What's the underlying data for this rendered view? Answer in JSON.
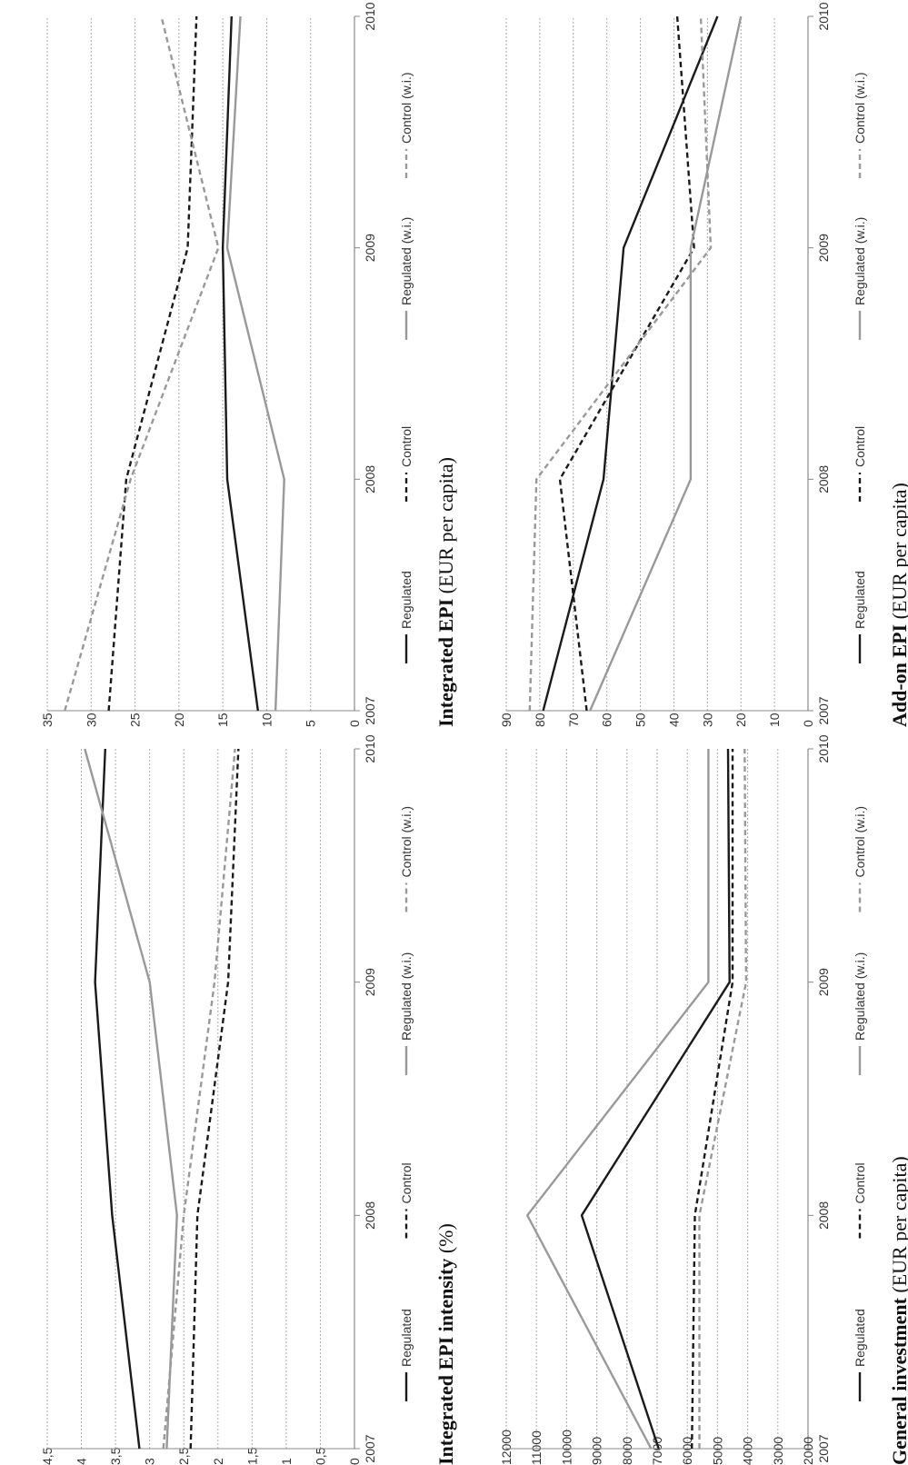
{
  "colors": {
    "regulated": "#1a1a1a",
    "control": "#1a1a1a",
    "regulated_wi": "#999999",
    "control_wi": "#999999",
    "grid": "#aaaaaa",
    "axis": "#888888"
  },
  "chart_data": [
    {
      "type": "line",
      "title_bold": "Integrated EPI",
      "title_rest": " (EUR per capita)",
      "x": [
        "2007",
        "2008",
        "2009",
        "2010"
      ],
      "ylim": [
        0,
        35
      ],
      "yticks": [
        "0",
        "5",
        "10",
        "15",
        "20",
        "25",
        "30",
        "35"
      ],
      "grid": true,
      "legend_position": "bottom",
      "series": [
        {
          "name": "Regulated",
          "style": "solid",
          "color": "#1a1a1a",
          "values": [
            11,
            14.5,
            15,
            14
          ]
        },
        {
          "name": "Control",
          "style": "dashed",
          "color": "#1a1a1a",
          "values": [
            28,
            26,
            19,
            18
          ]
        },
        {
          "name": "Regulated (w.i.)",
          "style": "solid",
          "color": "#999999",
          "values": [
            9,
            8,
            14.5,
            13
          ]
        },
        {
          "name": "Control (w.i.)",
          "style": "dashed",
          "color": "#999999",
          "values": [
            33,
            25.5,
            15.5,
            22
          ]
        }
      ]
    },
    {
      "type": "line",
      "title_bold": "Add-on EPI",
      "title_rest": " (EUR per capita)",
      "x": [
        "2007",
        "2008",
        "2009",
        "2010"
      ],
      "ylim": [
        0,
        90
      ],
      "yticks": [
        "0",
        "10",
        "20",
        "30",
        "40",
        "50",
        "60",
        "70",
        "80",
        "90"
      ],
      "grid": true,
      "legend_position": "bottom",
      "series": [
        {
          "name": "Regulated",
          "style": "solid",
          "color": "#1a1a1a",
          "values": [
            79,
            61,
            55,
            27
          ]
        },
        {
          "name": "Control",
          "style": "dashed",
          "color": "#1a1a1a",
          "values": [
            66,
            74,
            34,
            39
          ]
        },
        {
          "name": "Regulated (w.i.)",
          "style": "solid",
          "color": "#999999",
          "values": [
            65,
            35,
            35,
            20
          ]
        },
        {
          "name": "Control (w.i.)",
          "style": "dashed",
          "color": "#999999",
          "values": [
            83,
            81,
            29,
            32
          ]
        }
      ]
    },
    {
      "type": "line",
      "title_bold": "Integrated EPI intensity",
      "title_rest": " (%)",
      "x": [
        "2007",
        "2008",
        "2009",
        "2010"
      ],
      "ylim": [
        0,
        4.5
      ],
      "yticks": [
        "0",
        "0,5",
        "1",
        "1,5",
        "2",
        "2,5",
        "3",
        "3,5",
        "4",
        "4,5"
      ],
      "grid": true,
      "legend_position": "bottom",
      "series": [
        {
          "name": "Regulated",
          "style": "solid",
          "color": "#1a1a1a",
          "values": [
            3.15,
            3.55,
            3.8,
            3.65
          ]
        },
        {
          "name": "Control",
          "style": "dashed",
          "color": "#1a1a1a",
          "values": [
            2.4,
            2.3,
            1.85,
            1.7
          ]
        },
        {
          "name": "Regulated (w.i.)",
          "style": "solid",
          "color": "#999999",
          "values": [
            2.75,
            2.6,
            3.0,
            3.95
          ]
        },
        {
          "name": "Control (w.i.)",
          "style": "dashed",
          "color": "#999999",
          "values": [
            2.8,
            2.5,
            2.05,
            1.75
          ]
        }
      ]
    },
    {
      "type": "line",
      "title_bold": "General investment",
      "title_rest": " (EUR per capita)",
      "x": [
        "2007",
        "2008",
        "2009",
        "2010"
      ],
      "ylim": [
        2000,
        12000
      ],
      "yticks": [
        "2000",
        "3000",
        "4000",
        "5000",
        "6000",
        "7000",
        "8000",
        "9000",
        "10000",
        "11000",
        "12000"
      ],
      "grid": true,
      "legend_position": "bottom",
      "series": [
        {
          "name": "Regulated",
          "style": "solid",
          "color": "#1a1a1a",
          "values": [
            6950,
            9500,
            4600,
            4650
          ]
        },
        {
          "name": "Control",
          "style": "dashed",
          "color": "#1a1a1a",
          "values": [
            5850,
            5750,
            4500,
            4500
          ]
        },
        {
          "name": "Regulated (w.i.)",
          "style": "solid",
          "color": "#999999",
          "values": [
            7200,
            11300,
            5300,
            5300
          ]
        },
        {
          "name": "Control (w.i.)",
          "style": "dashed",
          "color": "#999999",
          "values": [
            5600,
            5600,
            4050,
            4100
          ]
        }
      ]
    }
  ]
}
